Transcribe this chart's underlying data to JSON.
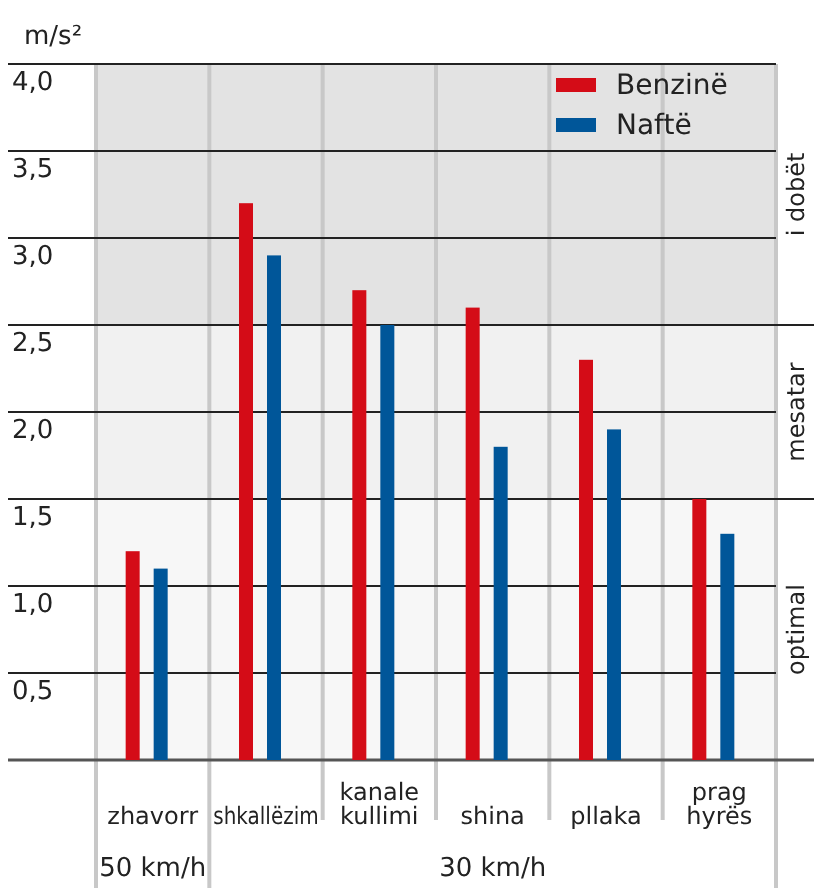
{
  "chart_data": {
    "type": "bar",
    "ylabel": "m/s²",
    "categories": [
      "zhavorr",
      "shkallëzim",
      "kanale kullimi",
      "shina",
      "pllaka",
      "prag hyrës"
    ],
    "series": [
      {
        "name": "Benzinë",
        "color": "#d40c17",
        "values": [
          1.2,
          3.2,
          2.7,
          2.6,
          2.3,
          1.5
        ]
      },
      {
        "name": "Naftë",
        "color": "#005699",
        "values": [
          1.1,
          2.9,
          2.5,
          1.8,
          1.9,
          1.3
        ]
      }
    ],
    "ylim": [
      0,
      4
    ],
    "yticks": [
      {
        "value": 0.5,
        "label": "0,5"
      },
      {
        "value": 1,
        "label": "1,0"
      },
      {
        "value": 1.5,
        "label": "1,5"
      },
      {
        "value": 2,
        "label": "2,0"
      },
      {
        "value": 2.5,
        "label": "2,5"
      },
      {
        "value": 3,
        "label": "3,0"
      },
      {
        "value": 3.5,
        "label": "3,5"
      },
      {
        "value": 4,
        "label": "4,0"
      }
    ],
    "bands": [
      {
        "axis": "y",
        "from": 2.5,
        "to": 4,
        "label": "i dobët",
        "color": "#e3e3e3"
      },
      {
        "axis": "y",
        "from": 1.5,
        "to": 2.5,
        "label": "mesatar",
        "color": "#f1f1f1"
      },
      {
        "axis": "y",
        "from": 0,
        "to": 1.5,
        "label": "optimal",
        "color": "#f7f7f7"
      }
    ],
    "grid": "y",
    "legend": "top right",
    "annotations": [
      "50 km/h",
      "30 km/h"
    ]
  }
}
